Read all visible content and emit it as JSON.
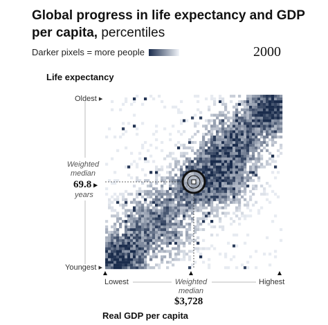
{
  "title": {
    "bold": "Global progress in life expectancy and GDP per capita,",
    "light": "percentiles"
  },
  "legend": {
    "label": "Darker pixels = more people"
  },
  "year": "2000",
  "colors": {
    "dark": "#1a2c4c",
    "light": "#f2f5fa"
  },
  "chart_data": {
    "type": "heatmap",
    "title": "Global progress in life expectancy and GDP per capita, percentiles",
    "xlabel": "Real GDP per capita",
    "ylabel": "Life expectancy",
    "x_ticks": {
      "low": "Lowest",
      "high": "Highest"
    },
    "y_ticks": {
      "low": "Youngest",
      "high": "Oldest"
    },
    "year": "2000",
    "median_marker": {
      "x_label": "Weighted median",
      "x_value": "$3,728",
      "y_label": "Weighted median",
      "y_value": "69.8",
      "y_unit": "years",
      "x_percentile": 50,
      "y_percentile": 50
    },
    "hotspots": [
      {
        "x": 0.95,
        "y": 0.92,
        "intensity": 0.95,
        "spread": 0.08
      },
      {
        "x": 0.08,
        "y": 0.05,
        "intensity": 0.9,
        "spread": 0.09
      },
      {
        "x": 0.65,
        "y": 0.52,
        "intensity": 0.7,
        "spread": 0.12
      },
      {
        "x": 0.5,
        "y": 0.5,
        "intensity": 0.6,
        "spread": 0.06
      },
      {
        "x": 0.3,
        "y": 0.25,
        "intensity": 0.45,
        "spread": 0.15
      },
      {
        "x": 0.75,
        "y": 0.75,
        "intensity": 0.5,
        "spread": 0.12
      }
    ]
  },
  "labels": {
    "oldest": "Oldest",
    "youngest": "Youngest",
    "lowest": "Lowest",
    "highest": "Highest",
    "y_weighted": "Weighted median",
    "y_value": "69.8",
    "y_years": "years",
    "x_weighted": "Weighted median",
    "x_value": "$3,728",
    "ylabel": "Life expectancy",
    "xlabel": "Real GDP per capita"
  }
}
